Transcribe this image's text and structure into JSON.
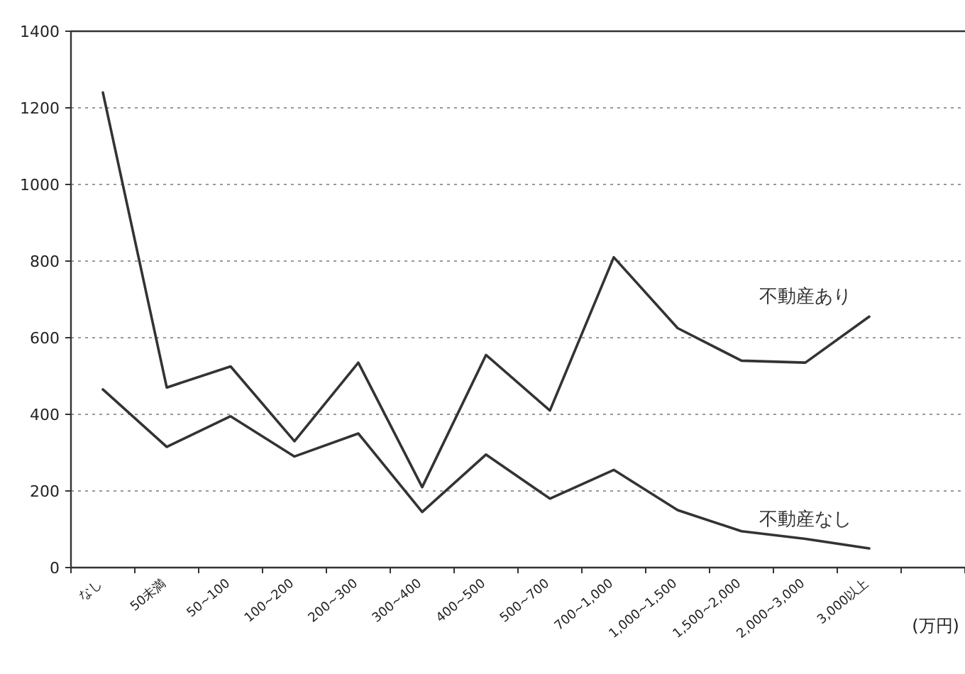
{
  "chart_data": {
    "type": "line",
    "xlabel": "(万円)",
    "categories": [
      "なし",
      "50未満",
      "50~100",
      "100~200",
      "200~300",
      "300~400",
      "400~500",
      "500~700",
      "700~1,000",
      "1,000~1,500",
      "1,500~2,000",
      "2,000~3,000",
      "3,000以上"
    ],
    "series": [
      {
        "name": "不動産あり",
        "color": "#333333",
        "values": [
          1240,
          470,
          525,
          330,
          535,
          210,
          555,
          410,
          810,
          625,
          540,
          535,
          655
        ]
      },
      {
        "name": "不動産なし",
        "color": "#333333",
        "values": [
          465,
          315,
          395,
          290,
          350,
          145,
          295,
          180,
          255,
          150,
          95,
          75,
          50
        ]
      }
    ],
    "ylim": [
      0,
      1400
    ],
    "yticks": [
      0,
      200,
      400,
      600,
      800,
      1000,
      1200,
      1400
    ],
    "grid": "y",
    "legend": false,
    "marker": "none",
    "line_style": "solid"
  }
}
